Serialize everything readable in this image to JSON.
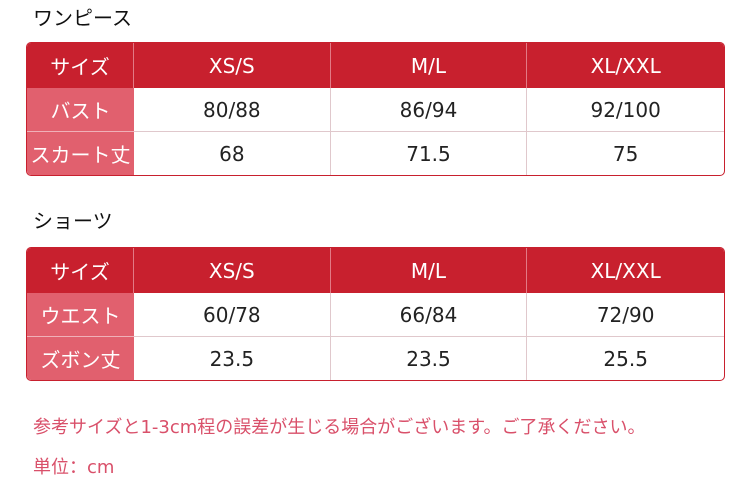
{
  "sections": [
    {
      "title": "ワンピース",
      "headers": [
        "サイズ",
        "XS/S",
        "M/L",
        "XL/XXL"
      ],
      "rows": [
        {
          "label": "バスト",
          "values": [
            "80/88",
            "86/94",
            "92/100"
          ]
        },
        {
          "label": "スカート丈",
          "values": [
            "68",
            "71.5",
            "75"
          ]
        }
      ]
    },
    {
      "title": "ショーツ",
      "headers": [
        "サイズ",
        "XS/S",
        "M/L",
        "XL/XXL"
      ],
      "rows": [
        {
          "label": "ウエスト",
          "values": [
            "60/78",
            "66/84",
            "72/90"
          ]
        },
        {
          "label": "ズボン丈",
          "values": [
            "23.5",
            "23.5",
            "25.5"
          ]
        }
      ]
    }
  ],
  "note": "参考サイズと1-3cm程の誤差が生じる場合がございます。ご了承ください。",
  "unit": "単位：cm",
  "colors": {
    "header": "#c8202e",
    "row_header": "#e1606e",
    "note": "#d9506a"
  }
}
